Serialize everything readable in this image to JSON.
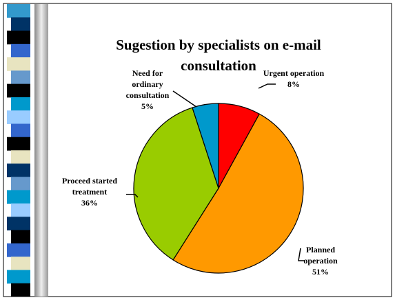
{
  "chart_data": {
    "type": "pie",
    "title": "Sugestion by specialists on e-mail consultation",
    "categories": [
      "Urgent operation",
      "Planned operation",
      "Proceed started treatment",
      "Need for ordinary consultation"
    ],
    "values": [
      8,
      51,
      36,
      5
    ],
    "value_labels": [
      "8%",
      "51%",
      "36%",
      "5%"
    ],
    "colors": [
      "#ff0000",
      "#ff9900",
      "#99cc00",
      "#0099cc"
    ]
  }
}
